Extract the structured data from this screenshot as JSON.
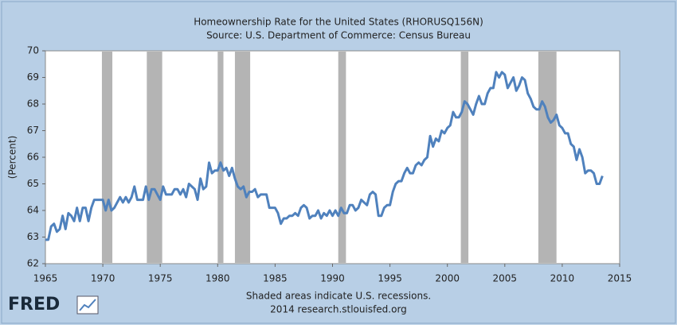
{
  "chart_data": {
    "type": "line",
    "title": "Homeownership Rate for the United States (RHORUSQ156N)",
    "subtitle": "Source: U.S. Department of Commerce: Census Bureau",
    "y_label": "(Percent)",
    "note": "Shaded areas indicate U.S. recessions.",
    "credit": "2014 research.stlouisfed.org",
    "logo": "FRED",
    "xlim": [
      1965,
      2015
    ],
    "xticks": [
      1965,
      1970,
      1975,
      1980,
      1985,
      1990,
      1995,
      2000,
      2005,
      2010,
      2015
    ],
    "ylim": [
      62,
      70
    ],
    "yticks": [
      62,
      63,
      64,
      65,
      66,
      67,
      68,
      69,
      70
    ],
    "grid": false,
    "recession_color": "#b4b4b4",
    "recessions": [
      [
        1969.92,
        1970.83
      ],
      [
        1973.83,
        1975.17
      ],
      [
        1980.0,
        1980.5
      ],
      [
        1981.5,
        1982.83
      ],
      [
        1990.5,
        1991.17
      ],
      [
        2001.17,
        2001.83
      ],
      [
        2007.92,
        2009.5
      ]
    ],
    "x": [
      1965,
      1965.25,
      1965.5,
      1965.75,
      1966,
      1966.25,
      1966.5,
      1966.75,
      1967,
      1967.25,
      1967.5,
      1967.75,
      1968,
      1968.25,
      1968.5,
      1968.75,
      1969,
      1969.25,
      1969.5,
      1969.75,
      1970,
      1970.25,
      1970.5,
      1970.75,
      1971,
      1971.25,
      1971.5,
      1971.75,
      1972,
      1972.25,
      1972.5,
      1972.75,
      1973,
      1973.25,
      1973.5,
      1973.75,
      1974,
      1974.25,
      1974.5,
      1974.75,
      1975,
      1975.25,
      1975.5,
      1975.75,
      1976,
      1976.25,
      1976.5,
      1976.75,
      1977,
      1977.25,
      1977.5,
      1977.75,
      1978,
      1978.25,
      1978.5,
      1978.75,
      1979,
      1979.25,
      1979.5,
      1979.75,
      1980,
      1980.25,
      1980.5,
      1980.75,
      1981,
      1981.25,
      1981.5,
      1981.75,
      1982,
      1982.25,
      1982.5,
      1982.75,
      1983,
      1983.25,
      1983.5,
      1983.75,
      1984,
      1984.25,
      1984.5,
      1984.75,
      1985,
      1985.25,
      1985.5,
      1985.75,
      1986,
      1986.25,
      1986.5,
      1986.75,
      1987,
      1987.25,
      1987.5,
      1987.75,
      1988,
      1988.25,
      1988.5,
      1988.75,
      1989,
      1989.25,
      1989.5,
      1989.75,
      1990,
      1990.25,
      1990.5,
      1990.75,
      1991,
      1991.25,
      1991.5,
      1991.75,
      1992,
      1992.25,
      1992.5,
      1992.75,
      1993,
      1993.25,
      1993.5,
      1993.75,
      1994,
      1994.25,
      1994.5,
      1994.75,
      1995,
      1995.25,
      1995.5,
      1995.75,
      1996,
      1996.25,
      1996.5,
      1996.75,
      1997,
      1997.25,
      1997.5,
      1997.75,
      1998,
      1998.25,
      1998.5,
      1998.75,
      1999,
      1999.25,
      1999.5,
      1999.75,
      2000,
      2000.25,
      2000.5,
      2000.75,
      2001,
      2001.25,
      2001.5,
      2001.75,
      2002,
      2002.25,
      2002.5,
      2002.75,
      2003,
      2003.25,
      2003.5,
      2003.75,
      2004,
      2004.25,
      2004.5,
      2004.75,
      2005,
      2005.25,
      2005.5,
      2005.75,
      2006,
      2006.25,
      2006.5,
      2006.75,
      2007,
      2007.25,
      2007.5,
      2007.75,
      2008,
      2008.25,
      2008.5,
      2008.75,
      2009,
      2009.25,
      2009.5,
      2009.75,
      2010,
      2010.25,
      2010.5,
      2010.75,
      2011,
      2011.25,
      2011.5,
      2011.75,
      2012,
      2012.25,
      2012.5,
      2012.75,
      2013,
      2013.25,
      2013.5
    ],
    "series": [
      {
        "name": "Homeownership Rate",
        "color": "#4f81bd",
        "values": [
          62.9,
          62.9,
          63.4,
          63.5,
          63.2,
          63.3,
          63.8,
          63.3,
          63.9,
          63.8,
          63.6,
          64.1,
          63.6,
          64.1,
          64.1,
          63.6,
          64.1,
          64.4,
          64.4,
          64.4,
          64.4,
          64.0,
          64.4,
          64.0,
          64.1,
          64.3,
          64.5,
          64.3,
          64.5,
          64.3,
          64.5,
          64.9,
          64.4,
          64.4,
          64.4,
          64.9,
          64.4,
          64.8,
          64.8,
          64.6,
          64.4,
          64.9,
          64.6,
          64.6,
          64.6,
          64.8,
          64.8,
          64.6,
          64.8,
          64.5,
          65.0,
          64.9,
          64.8,
          64.4,
          65.2,
          64.8,
          64.9,
          65.8,
          65.4,
          65.5,
          65.5,
          65.8,
          65.5,
          65.6,
          65.3,
          65.6,
          65.2,
          64.9,
          64.8,
          64.9,
          64.5,
          64.7,
          64.7,
          64.8,
          64.5,
          64.6,
          64.6,
          64.6,
          64.1,
          64.1,
          64.1,
          63.9,
          63.5,
          63.7,
          63.7,
          63.8,
          63.8,
          63.9,
          63.8,
          64.1,
          64.2,
          64.1,
          63.7,
          63.8,
          63.8,
          64.0,
          63.7,
          63.9,
          63.8,
          64.0,
          63.8,
          64.0,
          63.8,
          64.1,
          63.9,
          63.9,
          64.2,
          64.2,
          64.0,
          64.1,
          64.4,
          64.3,
          64.2,
          64.6,
          64.7,
          64.6,
          63.8,
          63.8,
          64.1,
          64.2,
          64.2,
          64.7,
          65.0,
          65.1,
          65.1,
          65.4,
          65.6,
          65.4,
          65.4,
          65.7,
          65.8,
          65.7,
          65.9,
          66.0,
          66.8,
          66.4,
          66.7,
          66.6,
          67.0,
          66.9,
          67.1,
          67.2,
          67.7,
          67.5,
          67.5,
          67.7,
          68.1,
          68.0,
          67.8,
          67.6,
          68.0,
          68.3,
          68.0,
          68.0,
          68.4,
          68.6,
          68.6,
          69.2,
          69.0,
          69.2,
          69.1,
          68.6,
          68.8,
          69.0,
          68.5,
          68.7,
          69.0,
          68.9,
          68.4,
          68.2,
          67.9,
          67.8,
          67.8,
          68.1,
          67.9,
          67.5,
          67.3,
          67.4,
          67.6,
          67.2,
          67.1,
          66.9,
          66.9,
          66.5,
          66.4,
          65.9,
          66.3,
          66.0,
          65.4,
          65.5,
          65.5,
          65.4,
          65.0,
          65.0,
          65.3
        ]
      }
    ]
  }
}
